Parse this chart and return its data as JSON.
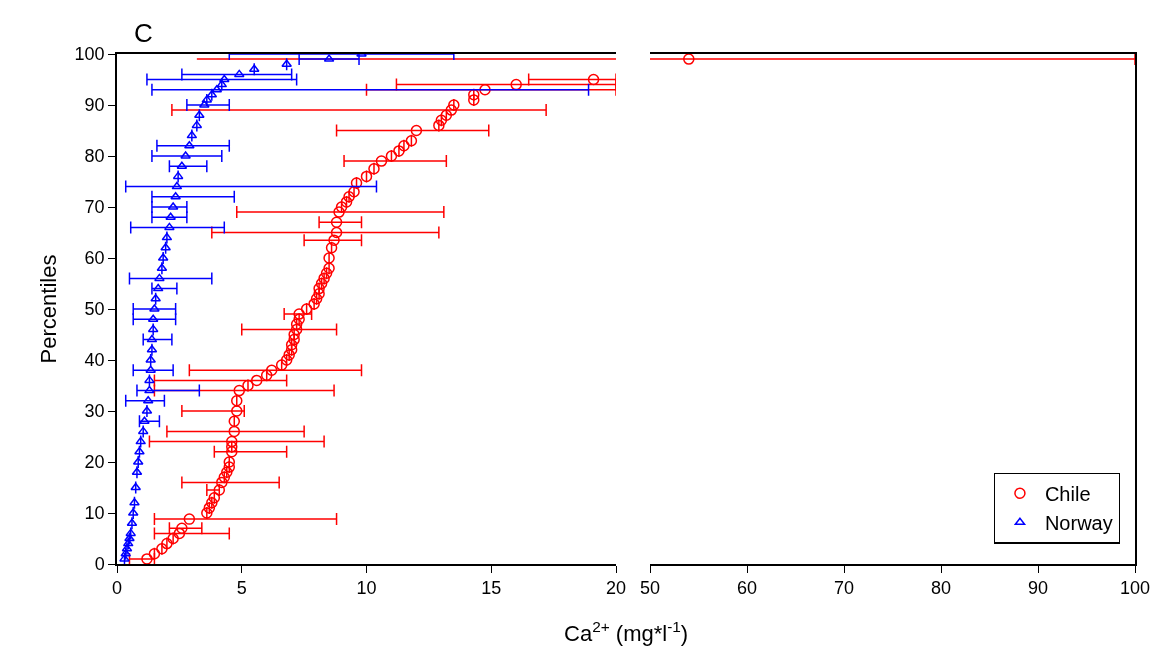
{
  "chart_data": [
    {
      "type": "scatter",
      "title": "C",
      "ylabel": "Percentiles",
      "xlabel": "Ca$^{2+}$ (mg*l$^{-1}$)",
      "xlim": [
        0,
        20
      ],
      "xticks": [
        0,
        5,
        10,
        15,
        20
      ],
      "ylim": [
        0,
        100
      ],
      "yticks": [
        0,
        10,
        20,
        30,
        40,
        50,
        60,
        70,
        80,
        90,
        100
      ],
      "legend": "bottom right",
      "series": [
        {
          "name": "Chile",
          "color": "#ff0000",
          "marker": "circle",
          "x": [
            1.2,
            1.5,
            1.8,
            2.0,
            2.25,
            2.5,
            2.6,
            2.9,
            3.6,
            3.7,
            3.8,
            3.9,
            4.1,
            4.2,
            4.3,
            4.4,
            4.5,
            4.5,
            4.6,
            4.6,
            4.6,
            4.7,
            4.7,
            4.8,
            4.8,
            4.9,
            5.25,
            5.6,
            6.0,
            6.2,
            6.6,
            6.8,
            6.9,
            7.0,
            7.0,
            7.1,
            7.1,
            7.2,
            7.2,
            7.3,
            7.3,
            7.6,
            7.9,
            8.0,
            8.1,
            8.1,
            8.2,
            8.3,
            8.4,
            8.5,
            8.5,
            8.6,
            8.7,
            8.8,
            8.8,
            8.9,
            9.0,
            9.2,
            9.3,
            9.5,
            9.6,
            10.0,
            10.3,
            10.6,
            11.0,
            11.3,
            11.5,
            11.8,
            12.0,
            12.9,
            13.0,
            13.2,
            13.4,
            13.5,
            14.3,
            14.3,
            14.75,
            16.0,
            19.1
          ],
          "values": [
            1,
            2,
            3,
            4,
            5,
            6,
            7,
            8.8,
            10,
            11,
            12,
            13,
            14.5,
            16,
            17,
            18,
            19,
            20,
            22,
            23,
            24,
            26,
            28,
            30,
            32,
            34,
            35,
            36,
            37,
            38,
            39,
            40,
            41,
            42,
            43,
            44,
            45,
            46,
            47,
            48,
            49,
            50,
            51,
            52,
            53,
            54,
            55,
            56,
            57,
            58,
            60,
            62,
            63.5,
            65,
            67,
            69,
            70,
            71,
            72,
            73,
            74.7,
            76,
            77.5,
            79,
            80,
            81,
            82,
            83,
            85,
            86,
            87,
            88,
            89,
            90,
            91,
            92,
            93,
            94,
            95
          ],
          "xerrors": [
            [
              0.5,
              1.5
            ],
            null,
            null,
            null,
            null,
            [
              1.5,
              4.5
            ],
            [
              2.1,
              3.4
            ],
            [
              1.5,
              8.8
            ],
            null,
            null,
            null,
            null,
            [
              3.6,
              4.1
            ],
            [
              2.6,
              6.5
            ],
            null,
            null,
            null,
            null,
            [
              3.9,
              6.8
            ],
            null,
            [
              1.3,
              8.3
            ],
            [
              2.0,
              7.5
            ],
            null,
            [
              2.6,
              5.1
            ],
            null,
            [
              1.5,
              8.7
            ],
            null,
            [
              1.5,
              6.8
            ],
            null,
            [
              2.9,
              9.8
            ],
            null,
            null,
            null,
            null,
            null,
            null,
            null,
            [
              5.0,
              8.8
            ],
            null,
            null,
            [
              6.7,
              7.8
            ],
            null,
            null,
            null,
            null,
            null,
            null,
            null,
            null,
            null,
            null,
            null,
            [
              7.5,
              9.8
            ],
            [
              3.8,
              12.9
            ],
            [
              8.1,
              9.8
            ],
            [
              4.8,
              13.1
            ],
            null,
            null,
            null,
            null,
            null,
            null,
            null,
            [
              9.1,
              13.2
            ],
            null,
            null,
            null,
            null,
            [
              8.8,
              14.9
            ],
            null,
            null,
            null,
            [
              2.2,
              17.2
            ],
            null,
            null,
            null,
            [
              10.0,
              20
            ],
            [
              11.2,
              20
            ],
            [
              16.5,
              20
            ]
          ]
        },
        {
          "type": "line",
          "color": "#ff0000",
          "marker": "none",
          "x": [
            3.2,
            20
          ],
          "values": [
            99,
            99
          ]
        },
        {
          "name": "Norway",
          "color": "#0000ff",
          "marker": "triangle",
          "x": [
            0.3,
            0.35,
            0.4,
            0.45,
            0.5,
            0.55,
            0.6,
            0.65,
            0.7,
            0.75,
            0.8,
            0.85,
            0.9,
            0.95,
            1.05,
            1.1,
            1.2,
            1.25,
            1.3,
            1.3,
            1.35,
            1.35,
            1.4,
            1.4,
            1.45,
            1.45,
            1.5,
            1.55,
            1.65,
            1.7,
            1.8,
            1.85,
            1.95,
            2.0,
            2.1,
            2.15,
            2.25,
            2.35,
            2.4,
            2.45,
            2.6,
            2.75,
            2.9,
            3.0,
            3.2,
            3.3,
            3.5,
            3.6,
            3.8,
            4.0,
            4.2,
            4.3,
            4.9,
            5.5,
            6.8,
            8.5,
            9.8
          ],
          "values": [
            1,
            2,
            3,
            4,
            5,
            6,
            8,
            10,
            12,
            15,
            18,
            20,
            22,
            24,
            26,
            28,
            30,
            32,
            34,
            36,
            38,
            40,
            42,
            44,
            46,
            48,
            50,
            52,
            54,
            56,
            58,
            60,
            62,
            64,
            66,
            68,
            70,
            72,
            74,
            76,
            78,
            80,
            82,
            84,
            86,
            88,
            90,
            91,
            92,
            93,
            94,
            95,
            96,
            97,
            98,
            99,
            100
          ],
          "xerrors": [
            null,
            null,
            null,
            null,
            null,
            null,
            null,
            null,
            null,
            null,
            null,
            null,
            null,
            null,
            null,
            [
              0.9,
              1.7
            ],
            null,
            [
              0.35,
              1.9
            ],
            [
              0.8,
              3.3
            ],
            null,
            [
              0.65,
              2.25
            ],
            null,
            null,
            [
              1.05,
              2.2
            ],
            null,
            [
              0.65,
              2.35
            ],
            [
              0.65,
              2.35
            ],
            null,
            [
              1.4,
              2.4
            ],
            [
              0.5,
              3.8
            ],
            null,
            null,
            null,
            null,
            [
              0.55,
              4.3
            ],
            [
              1.4,
              2.8
            ],
            [
              1.4,
              2.8
            ],
            [
              1.4,
              4.7
            ],
            [
              0.35,
              10.4
            ],
            null,
            [
              2.1,
              3.6
            ],
            [
              1.4,
              4.2
            ],
            [
              1.6,
              4.5
            ],
            null,
            null,
            null,
            [
              2.8,
              4.5
            ],
            null,
            null,
            [
              1.4,
              18.9
            ],
            null,
            [
              1.2,
              7.2
            ],
            [
              2.6,
              7.0
            ],
            null,
            null,
            [
              7.3,
              9.7
            ],
            [
              4.5,
              13.5
            ]
          ]
        }
      ]
    },
    {
      "type": "scatter",
      "xlim": [
        50,
        100
      ],
      "xticks": [
        50,
        60,
        70,
        80,
        90,
        100
      ],
      "ylim": [
        0,
        100
      ],
      "yticks": [
        0,
        10,
        20,
        30,
        40,
        50,
        60,
        70,
        80,
        90,
        100
      ],
      "tick_labels": "x",
      "series": [
        {
          "color": "#ff0000",
          "marker": "circle",
          "x": [
            54
          ],
          "values": [
            99
          ],
          "xerrors": [
            [
              3.2,
              100
            ]
          ]
        }
      ]
    }
  ]
}
